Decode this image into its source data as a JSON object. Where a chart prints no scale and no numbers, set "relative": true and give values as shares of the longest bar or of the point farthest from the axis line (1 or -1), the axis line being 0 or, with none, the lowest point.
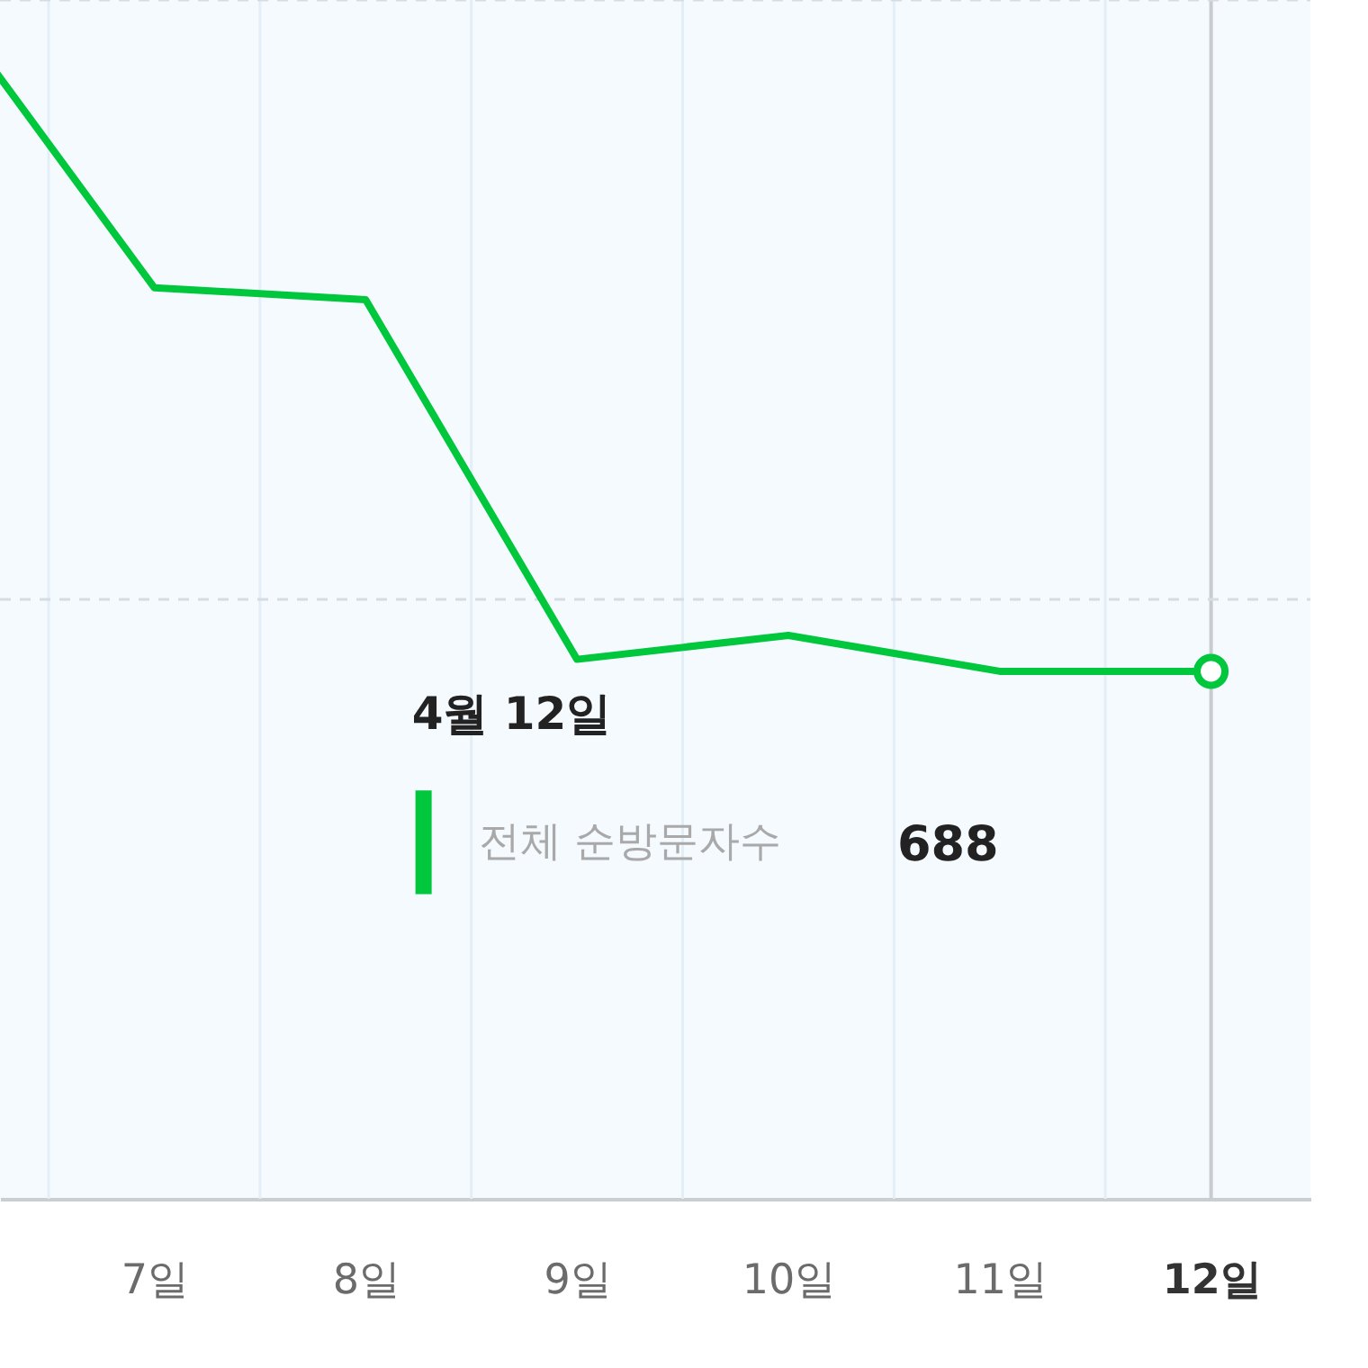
{
  "chart_data": {
    "type": "line",
    "relative": true,
    "categories": [
      null,
      "7일",
      "8일",
      "9일",
      "10일",
      "11일",
      "12일"
    ],
    "series": [
      {
        "name": "전체 순방문자수",
        "color": "#00c73c",
        "values": [
          1,
          0.76,
          0.75,
          0.45,
          0.47,
          0.44,
          0.44
        ]
      }
    ],
    "grid": "x",
    "tick_labels": "x",
    "legend": "center",
    "legend_title": "4월 12일",
    "ref_lines": [
      {
        "axis": "x",
        "value": "12일",
        "color": "#c8ccd0"
      },
      {
        "axis": "y",
        "value": 0.5,
        "color": "#d6dce2",
        "line_style": "dashed"
      },
      {
        "axis": "y",
        "value": 1,
        "color": "#d6dce2",
        "line_style": "dashed"
      }
    ],
    "annotations": [
      "688"
    ]
  }
}
